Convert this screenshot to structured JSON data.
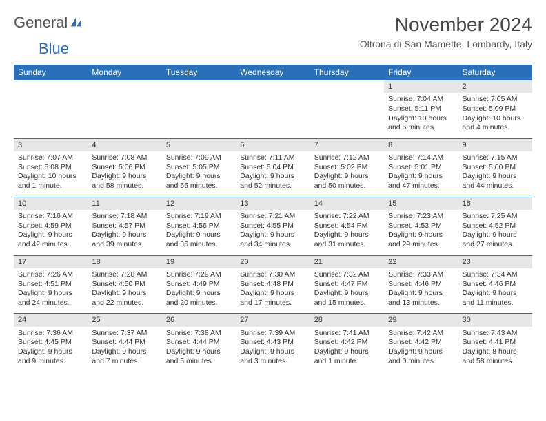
{
  "logo": {
    "text1": "General",
    "text2": "Blue"
  },
  "title": "November 2024",
  "location": "Oltrona di San Mamette, Lombardy, Italy",
  "colors": {
    "header_bg": "#2a70b8",
    "header_fg": "#ffffff",
    "daynum_bg": "#e7e7e7",
    "border": "#2a70b8",
    "text": "#333333"
  },
  "day_headers": [
    "Sunday",
    "Monday",
    "Tuesday",
    "Wednesday",
    "Thursday",
    "Friday",
    "Saturday"
  ],
  "weeks": [
    [
      {
        "empty": true
      },
      {
        "empty": true
      },
      {
        "empty": true
      },
      {
        "empty": true
      },
      {
        "empty": true
      },
      {
        "n": "1",
        "sunrise": "Sunrise: 7:04 AM",
        "sunset": "Sunset: 5:11 PM",
        "daylight": "Daylight: 10 hours and 6 minutes."
      },
      {
        "n": "2",
        "sunrise": "Sunrise: 7:05 AM",
        "sunset": "Sunset: 5:09 PM",
        "daylight": "Daylight: 10 hours and 4 minutes."
      }
    ],
    [
      {
        "n": "3",
        "sunrise": "Sunrise: 7:07 AM",
        "sunset": "Sunset: 5:08 PM",
        "daylight": "Daylight: 10 hours and 1 minute."
      },
      {
        "n": "4",
        "sunrise": "Sunrise: 7:08 AM",
        "sunset": "Sunset: 5:06 PM",
        "daylight": "Daylight: 9 hours and 58 minutes."
      },
      {
        "n": "5",
        "sunrise": "Sunrise: 7:09 AM",
        "sunset": "Sunset: 5:05 PM",
        "daylight": "Daylight: 9 hours and 55 minutes."
      },
      {
        "n": "6",
        "sunrise": "Sunrise: 7:11 AM",
        "sunset": "Sunset: 5:04 PM",
        "daylight": "Daylight: 9 hours and 52 minutes."
      },
      {
        "n": "7",
        "sunrise": "Sunrise: 7:12 AM",
        "sunset": "Sunset: 5:02 PM",
        "daylight": "Daylight: 9 hours and 50 minutes."
      },
      {
        "n": "8",
        "sunrise": "Sunrise: 7:14 AM",
        "sunset": "Sunset: 5:01 PM",
        "daylight": "Daylight: 9 hours and 47 minutes."
      },
      {
        "n": "9",
        "sunrise": "Sunrise: 7:15 AM",
        "sunset": "Sunset: 5:00 PM",
        "daylight": "Daylight: 9 hours and 44 minutes."
      }
    ],
    [
      {
        "n": "10",
        "sunrise": "Sunrise: 7:16 AM",
        "sunset": "Sunset: 4:59 PM",
        "daylight": "Daylight: 9 hours and 42 minutes."
      },
      {
        "n": "11",
        "sunrise": "Sunrise: 7:18 AM",
        "sunset": "Sunset: 4:57 PM",
        "daylight": "Daylight: 9 hours and 39 minutes."
      },
      {
        "n": "12",
        "sunrise": "Sunrise: 7:19 AM",
        "sunset": "Sunset: 4:56 PM",
        "daylight": "Daylight: 9 hours and 36 minutes."
      },
      {
        "n": "13",
        "sunrise": "Sunrise: 7:21 AM",
        "sunset": "Sunset: 4:55 PM",
        "daylight": "Daylight: 9 hours and 34 minutes."
      },
      {
        "n": "14",
        "sunrise": "Sunrise: 7:22 AM",
        "sunset": "Sunset: 4:54 PM",
        "daylight": "Daylight: 9 hours and 31 minutes."
      },
      {
        "n": "15",
        "sunrise": "Sunrise: 7:23 AM",
        "sunset": "Sunset: 4:53 PM",
        "daylight": "Daylight: 9 hours and 29 minutes."
      },
      {
        "n": "16",
        "sunrise": "Sunrise: 7:25 AM",
        "sunset": "Sunset: 4:52 PM",
        "daylight": "Daylight: 9 hours and 27 minutes."
      }
    ],
    [
      {
        "n": "17",
        "sunrise": "Sunrise: 7:26 AM",
        "sunset": "Sunset: 4:51 PM",
        "daylight": "Daylight: 9 hours and 24 minutes."
      },
      {
        "n": "18",
        "sunrise": "Sunrise: 7:28 AM",
        "sunset": "Sunset: 4:50 PM",
        "daylight": "Daylight: 9 hours and 22 minutes."
      },
      {
        "n": "19",
        "sunrise": "Sunrise: 7:29 AM",
        "sunset": "Sunset: 4:49 PM",
        "daylight": "Daylight: 9 hours and 20 minutes."
      },
      {
        "n": "20",
        "sunrise": "Sunrise: 7:30 AM",
        "sunset": "Sunset: 4:48 PM",
        "daylight": "Daylight: 9 hours and 17 minutes."
      },
      {
        "n": "21",
        "sunrise": "Sunrise: 7:32 AM",
        "sunset": "Sunset: 4:47 PM",
        "daylight": "Daylight: 9 hours and 15 minutes."
      },
      {
        "n": "22",
        "sunrise": "Sunrise: 7:33 AM",
        "sunset": "Sunset: 4:46 PM",
        "daylight": "Daylight: 9 hours and 13 minutes."
      },
      {
        "n": "23",
        "sunrise": "Sunrise: 7:34 AM",
        "sunset": "Sunset: 4:46 PM",
        "daylight": "Daylight: 9 hours and 11 minutes."
      }
    ],
    [
      {
        "n": "24",
        "sunrise": "Sunrise: 7:36 AM",
        "sunset": "Sunset: 4:45 PM",
        "daylight": "Daylight: 9 hours and 9 minutes."
      },
      {
        "n": "25",
        "sunrise": "Sunrise: 7:37 AM",
        "sunset": "Sunset: 4:44 PM",
        "daylight": "Daylight: 9 hours and 7 minutes."
      },
      {
        "n": "26",
        "sunrise": "Sunrise: 7:38 AM",
        "sunset": "Sunset: 4:44 PM",
        "daylight": "Daylight: 9 hours and 5 minutes."
      },
      {
        "n": "27",
        "sunrise": "Sunrise: 7:39 AM",
        "sunset": "Sunset: 4:43 PM",
        "daylight": "Daylight: 9 hours and 3 minutes."
      },
      {
        "n": "28",
        "sunrise": "Sunrise: 7:41 AM",
        "sunset": "Sunset: 4:42 PM",
        "daylight": "Daylight: 9 hours and 1 minute."
      },
      {
        "n": "29",
        "sunrise": "Sunrise: 7:42 AM",
        "sunset": "Sunset: 4:42 PM",
        "daylight": "Daylight: 9 hours and 0 minutes."
      },
      {
        "n": "30",
        "sunrise": "Sunrise: 7:43 AM",
        "sunset": "Sunset: 4:41 PM",
        "daylight": "Daylight: 8 hours and 58 minutes."
      }
    ]
  ]
}
